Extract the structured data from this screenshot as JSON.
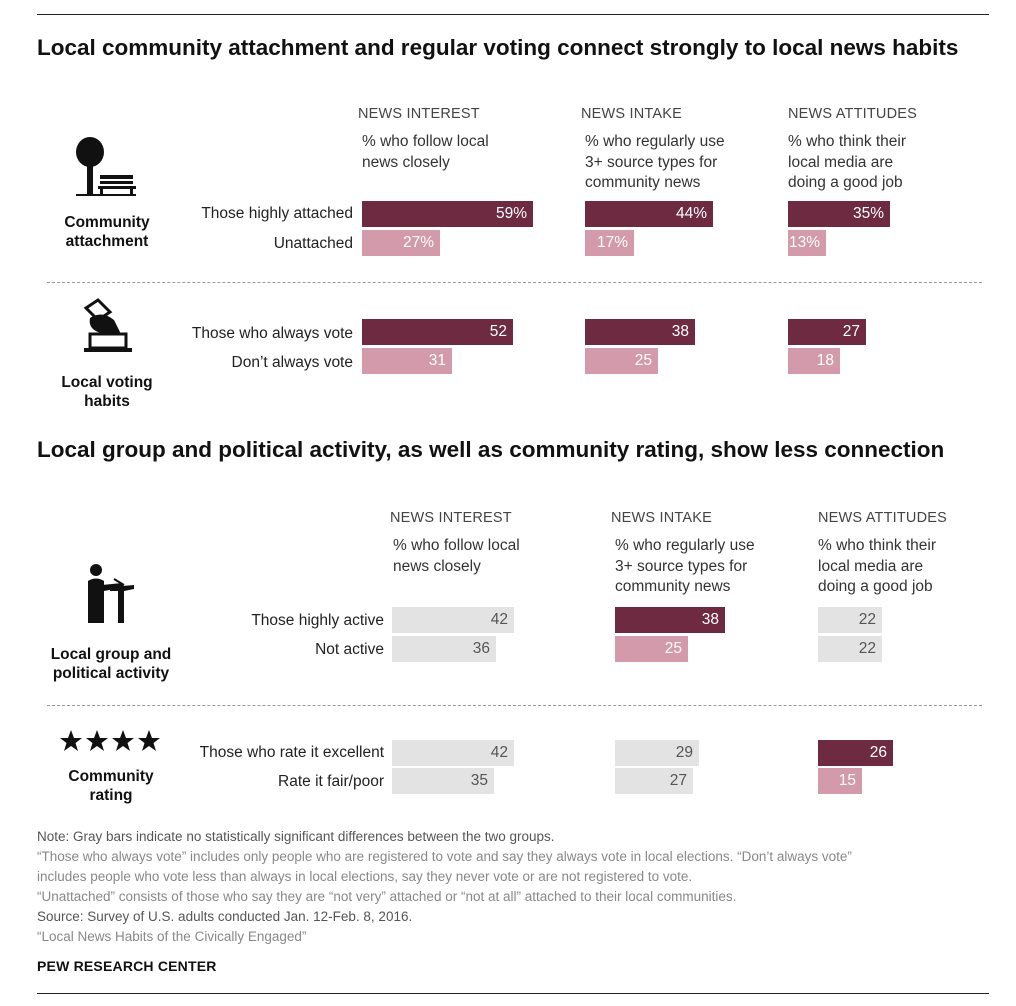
{
  "colors": {
    "dark": "#6d2a40",
    "light": "#d39aab",
    "gray": "#e3e3e3",
    "val_on_dark": "#ffffff",
    "val_on_gray": "#555555"
  },
  "sections": [
    {
      "title": "Local community attachment and regular voting connect strongly to local news habits",
      "columns": [
        {
          "head": "NEWS INTEREST",
          "sub": "% who follow local news closely"
        },
        {
          "head": "NEWS INTAKE",
          "sub": "% who regularly use 3+ source types for community news"
        },
        {
          "head": "NEWS ATTITUDES",
          "sub": "% who think their local media are doing a good job"
        }
      ],
      "groups": [
        {
          "label": "Community attachment",
          "icon": "tree-bench-icon",
          "rows": [
            {
              "label": "Those highly attached",
              "values": [
                "59%",
                "44%",
                "35%"
              ]
            },
            {
              "label": "Unattached",
              "values": [
                "27%",
                "17%",
                "13%"
              ]
            }
          ]
        },
        {
          "label": "Local voting habits",
          "icon": "ballot-box-icon",
          "rows": [
            {
              "label": "Those who always vote",
              "values": [
                "52",
                "38",
                "27"
              ]
            },
            {
              "label": "Don’t always vote",
              "values": [
                "31",
                "25",
                "18"
              ]
            }
          ]
        }
      ]
    },
    {
      "title": "Local group and political activity, as well as community rating, show less connection",
      "columns": [
        {
          "head": "NEWS INTEREST",
          "sub": "% who follow local news closely"
        },
        {
          "head": "NEWS INTAKE",
          "sub": "% who regularly use 3+ source types for community news"
        },
        {
          "head": "NEWS ATTITUDES",
          "sub": "% who think their local media are doing a good job"
        }
      ],
      "groups": [
        {
          "label": "Local group and political activity",
          "icon": "speaker-podium-icon",
          "rows": [
            {
              "label": "Those highly active",
              "values": [
                "42",
                "38",
                "22"
              ]
            },
            {
              "label": "Not active",
              "values": [
                "36",
                "25",
                "22"
              ]
            }
          ]
        },
        {
          "label": "Community rating",
          "icon": "four-stars-icon",
          "rows": [
            {
              "label": "Those who rate it excellent",
              "values": [
                "42",
                "29",
                "26"
              ]
            },
            {
              "label": "Rate it fair/poor",
              "values": [
                "35",
                "27",
                "15"
              ]
            }
          ]
        }
      ]
    }
  ],
  "chart_data": {
    "type": "bar",
    "scale_max": 100,
    "metrics": [
      "NEWS INTEREST",
      "NEWS INTAKE",
      "NEWS ATTITUDES"
    ],
    "groups": [
      {
        "group": "Community attachment",
        "significant": [
          true,
          true,
          true
        ],
        "series": [
          {
            "name": "Those highly attached",
            "values": [
              59,
              44,
              35
            ]
          },
          {
            "name": "Unattached",
            "values": [
              27,
              17,
              13
            ]
          }
        ]
      },
      {
        "group": "Local voting habits",
        "significant": [
          true,
          true,
          true
        ],
        "series": [
          {
            "name": "Those who always vote",
            "values": [
              52,
              38,
              27
            ]
          },
          {
            "name": "Don’t always vote",
            "values": [
              31,
              25,
              18
            ]
          }
        ]
      },
      {
        "group": "Local group and political activity",
        "significant": [
          false,
          true,
          false
        ],
        "series": [
          {
            "name": "Those highly active",
            "values": [
              42,
              38,
              22
            ]
          },
          {
            "name": "Not active",
            "values": [
              36,
              25,
              22
            ]
          }
        ]
      },
      {
        "group": "Community rating",
        "significant": [
          false,
          false,
          true
        ],
        "series": [
          {
            "name": "Those who rate it excellent",
            "values": [
              42,
              29,
              26
            ]
          },
          {
            "name": "Rate it fair/poor",
            "values": [
              35,
              27,
              15
            ]
          }
        ]
      }
    ]
  },
  "footer": {
    "note": "Note: Gray bars indicate no statistically significant differences between the two groups.",
    "vote_note_1": "“Those who always vote” includes only people who are registered to vote and say they always vote in local elections. “Don’t always vote”",
    "vote_note_2": "includes people who vote less than always in local elections, say they never vote or are not registered to vote.",
    "unattached_note": "“Unattached” consists of those who say they are “not very” attached or “not at all” attached to their local communities.",
    "source": "Source: Survey of U.S. adults conducted Jan. 12-Feb. 8, 2016.",
    "report": "“Local News Habits of the Civically Engaged”",
    "org": "PEW RESEARCH CENTER"
  }
}
